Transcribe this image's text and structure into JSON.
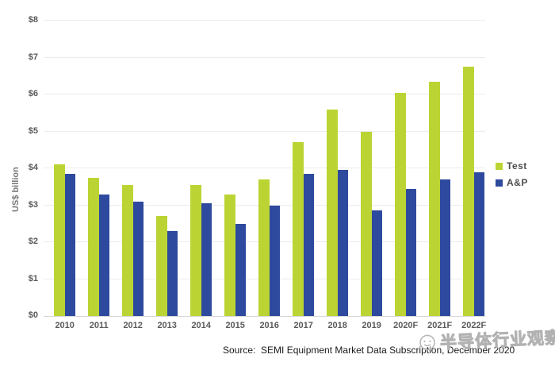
{
  "chart_data": {
    "type": "bar",
    "title": "",
    "categories": [
      "2010",
      "2011",
      "2012",
      "2013",
      "2014",
      "2015",
      "2016",
      "2017",
      "2018",
      "2019",
      "2020F",
      "2021F",
      "2022F"
    ],
    "series": [
      {
        "name": "Test",
        "color": "#bcd433",
        "values": [
          4.1,
          3.75,
          3.55,
          2.7,
          3.55,
          3.3,
          3.7,
          4.7,
          5.6,
          5.0,
          6.05,
          6.35,
          6.75
        ]
      },
      {
        "name": "A&P",
        "color": "#2e4a9e",
        "values": [
          3.85,
          3.3,
          3.1,
          2.3,
          3.05,
          2.5,
          3.0,
          3.85,
          3.95,
          2.85,
          3.45,
          3.7,
          3.9
        ]
      }
    ],
    "xlabel": "",
    "ylabel": "US$ billion",
    "ylim": [
      0,
      8
    ],
    "ytick_labels": [
      "$0",
      "$1",
      "$2",
      "$3",
      "$4",
      "$5",
      "$6",
      "$7",
      "$8"
    ],
    "grid": "horizontal",
    "legend_position": "right"
  },
  "source": {
    "text": "Source:  SEMI Equipment Market Data Subscription, December 2020"
  },
  "watermark": {
    "text": "半导体行业观察"
  },
  "colors": {
    "test_green": "#bcd433",
    "ap_blue": "#2e4a9e",
    "gridline": "#ececec",
    "axis_text": "#58595b"
  }
}
